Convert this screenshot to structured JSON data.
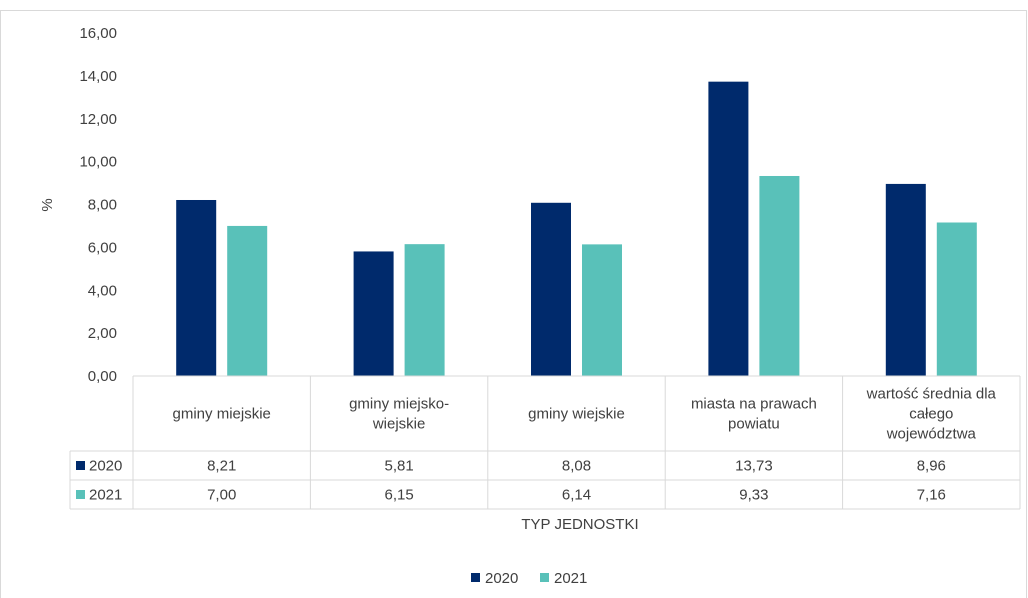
{
  "chart_data": {
    "type": "bar",
    "title": "",
    "ylabel": "%",
    "xlabel": "TYP JEDNOSTKI",
    "ylim": [
      0,
      16
    ],
    "y_ticks": [
      "0,00",
      "2,00",
      "4,00",
      "6,00",
      "8,00",
      "10,00",
      "12,00",
      "14,00",
      "16,00"
    ],
    "categories": [
      [
        "gminy miejskie"
      ],
      [
        "gminy miejsko-",
        "wiejskie"
      ],
      [
        "gminy wiejskie"
      ],
      [
        "miasta na prawach",
        "powiatu"
      ],
      [
        "wartość średnia dla",
        "całego",
        "województwa"
      ]
    ],
    "series": [
      {
        "name": "2020",
        "color": "#002a6c",
        "values": [
          8.21,
          5.81,
          8.08,
          13.73,
          8.96
        ],
        "labels": [
          "8,21",
          "5,81",
          "8,08",
          "13,73",
          "8,96"
        ]
      },
      {
        "name": "2021",
        "color": "#59c1b9",
        "values": [
          7.0,
          6.15,
          6.14,
          9.33,
          7.16
        ],
        "labels": [
          "7,00",
          "6,15",
          "6,14",
          "9,33",
          "7,16"
        ]
      }
    ],
    "legend": {
      "position": "bottom"
    },
    "data_table": true,
    "grid": false
  }
}
